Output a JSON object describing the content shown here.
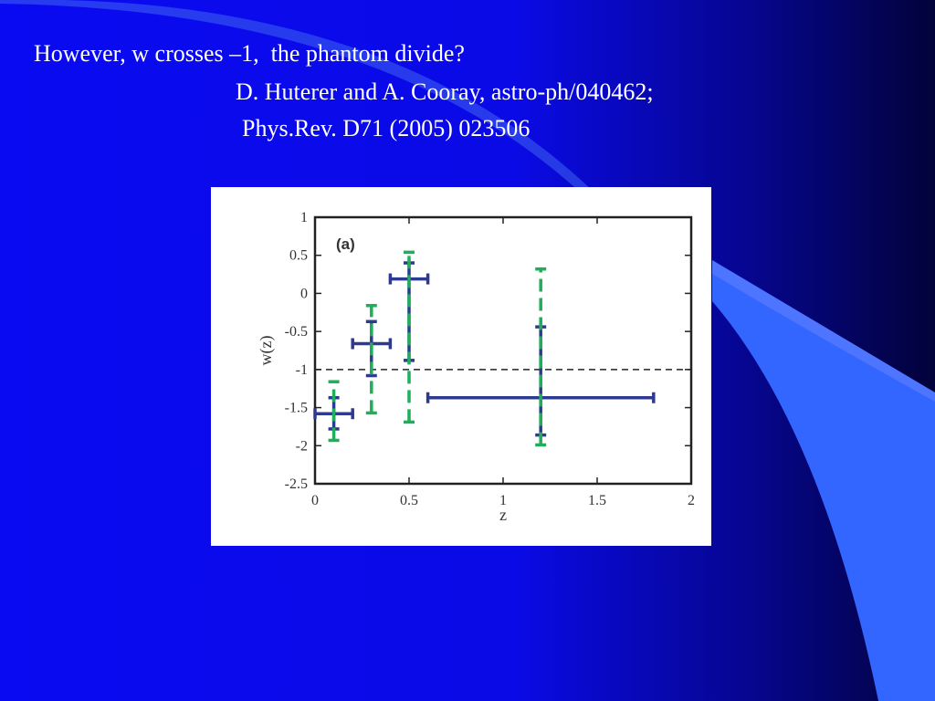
{
  "slide": {
    "heading": "However, w crosses –1,  the phantom divide?",
    "reference_1": "D. Huterer and A. Cooray, astro-ph/040462;",
    "reference_2": "Phys.Rev. D71 (2005) 023506"
  },
  "chart_data": {
    "type": "errorbar",
    "annotation": "(a)",
    "x_label": "z",
    "y_label": "w(z)",
    "xlim": [
      0,
      2
    ],
    "xticks": [
      0,
      0.5,
      1,
      1.5,
      2
    ],
    "ylim": [
      -2.5,
      1
    ],
    "yticks": [
      1,
      0.5,
      0,
      -0.5,
      -1,
      -1.5,
      -2,
      -2.5
    ],
    "reference_line": -1,
    "series": [
      {
        "color": "#2e3a8f",
        "x": [
          0.1,
          0.3,
          0.5,
          1.2
        ],
        "values": [
          -1.58,
          -0.66,
          0.19,
          -1.37
        ],
        "x_low": [
          0,
          0.2,
          0.4,
          0.6
        ],
        "x_high": [
          0.2,
          0.4,
          0.6,
          1.8
        ],
        "y_low": [
          -1.78,
          -1.08,
          -0.88,
          -1.86
        ],
        "y_high": [
          -1.37,
          -0.37,
          0.4,
          -0.44
        ]
      },
      {
        "color": "#1fae5a",
        "dashed": true,
        "x": [
          0.1,
          0.3,
          0.5,
          1.2
        ],
        "y_low": [
          -1.93,
          -1.57,
          -1.69,
          -1.99
        ],
        "y_high": [
          -1.16,
          -0.16,
          0.54,
          0.32
        ]
      }
    ]
  }
}
